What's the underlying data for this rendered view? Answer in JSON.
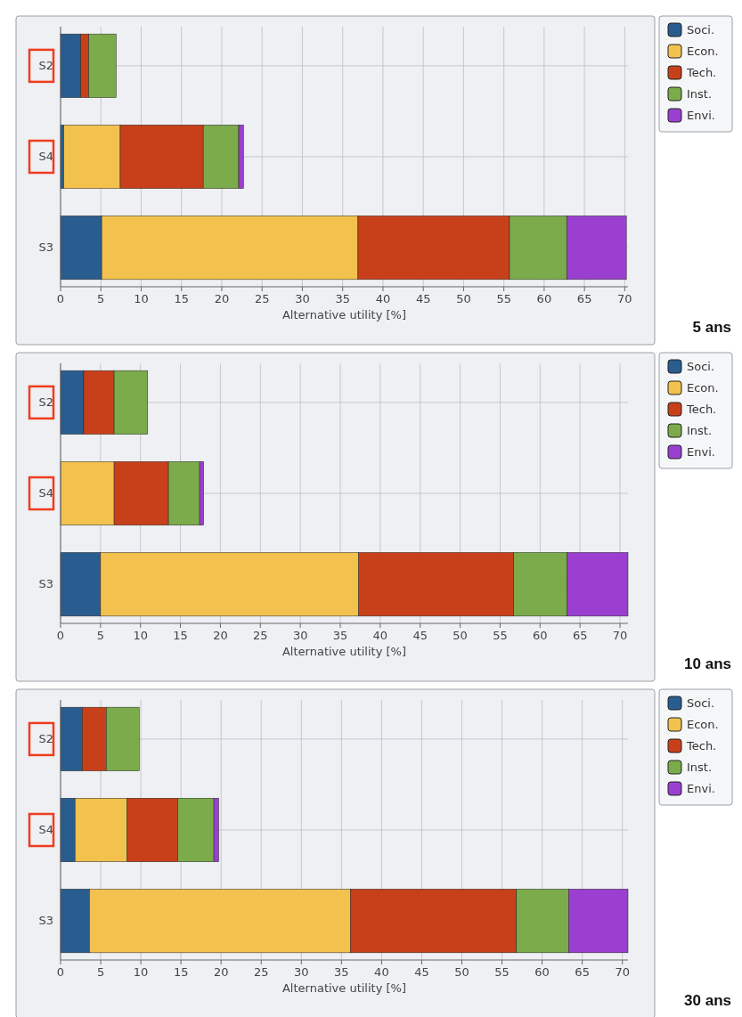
{
  "chart_data": [
    {
      "type": "bar",
      "orientation": "horizontal",
      "stacked": true,
      "categories": [
        "S2",
        "S4",
        "S3"
      ],
      "xlabel": "Alternative utility [%]",
      "xlim": [
        0,
        70.4
      ],
      "xticks": [
        0,
        5,
        10,
        15,
        20,
        25,
        30,
        35,
        40,
        45,
        50,
        55,
        60,
        65,
        70
      ],
      "grid": true,
      "legend": "right",
      "annotations": [
        "5 ans"
      ],
      "series": [
        {
          "name": "Soci.",
          "color": "#2a5d8f",
          "values": [
            2.5,
            0.4,
            5.1
          ]
        },
        {
          "name": "Econ.",
          "color": "#f2c14e",
          "values": [
            null,
            7.0,
            31.8
          ]
        },
        {
          "name": "Tech.",
          "color": "#c8401a",
          "values": [
            1.0,
            10.3,
            18.8
          ]
        },
        {
          "name": "Inst.",
          "color": "#7bab4a",
          "values": [
            3.4,
            4.4,
            7.1
          ]
        },
        {
          "name": "Envi.",
          "color": "#9b3fd0",
          "values": [
            null,
            0.6,
            7.4
          ]
        }
      ]
    },
    {
      "type": "bar",
      "orientation": "horizontal",
      "stacked": true,
      "categories": [
        "S2",
        "S4",
        "S3"
      ],
      "xlabel": "Alternative utility [%]",
      "xlim": [
        0,
        71
      ],
      "xticks": [
        0,
        5,
        10,
        15,
        20,
        25,
        30,
        35,
        40,
        45,
        50,
        55,
        60,
        65,
        70
      ],
      "grid": true,
      "legend": "right",
      "annotations": [
        "10 ans"
      ],
      "series": [
        {
          "name": "Soci.",
          "color": "#2a5d8f",
          "values": [
            2.9,
            null,
            5.0
          ]
        },
        {
          "name": "Econ.",
          "color": "#f2c14e",
          "values": [
            null,
            6.7,
            32.3
          ]
        },
        {
          "name": "Tech.",
          "color": "#c8401a",
          "values": [
            3.8,
            6.8,
            19.4
          ]
        },
        {
          "name": "Inst.",
          "color": "#7bab4a",
          "values": [
            4.2,
            3.9,
            6.7
          ]
        },
        {
          "name": "Envi.",
          "color": "#9b3fd0",
          "values": [
            null,
            0.5,
            7.6
          ]
        }
      ]
    },
    {
      "type": "bar",
      "orientation": "horizontal",
      "stacked": true,
      "categories": [
        "S2",
        "S4",
        "S3"
      ],
      "xlabel": "Alternative utility [%]",
      "xlim": [
        0,
        70.7
      ],
      "xticks": [
        0,
        5,
        10,
        15,
        20,
        25,
        30,
        35,
        40,
        45,
        50,
        55,
        60,
        65,
        70
      ],
      "grid": true,
      "legend": "right",
      "annotations": [
        "30 ans"
      ],
      "series": [
        {
          "name": "Soci.",
          "color": "#2a5d8f",
          "values": [
            2.7,
            1.8,
            3.6
          ]
        },
        {
          "name": "Econ.",
          "color": "#f2c14e",
          "values": [
            null,
            6.5,
            32.5
          ]
        },
        {
          "name": "Tech.",
          "color": "#c8401a",
          "values": [
            3.0,
            6.3,
            20.7
          ]
        },
        {
          "name": "Inst.",
          "color": "#7bab4a",
          "values": [
            4.1,
            4.5,
            6.5
          ]
        },
        {
          "name": "Envi.",
          "color": "#9b3fd0",
          "values": [
            null,
            0.6,
            7.4
          ]
        }
      ]
    }
  ]
}
